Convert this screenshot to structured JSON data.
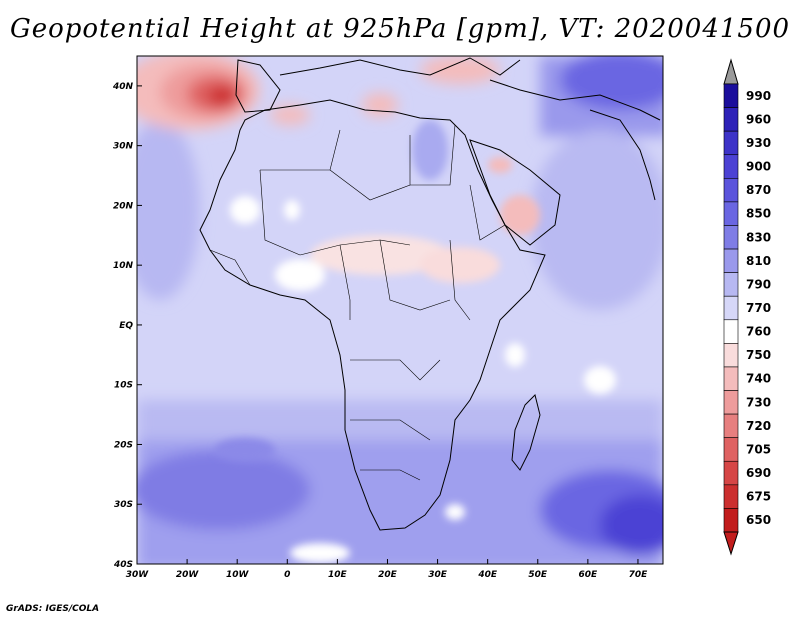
{
  "title": "Geopotential Height at 925hPa [gpm], VT: 2020041500",
  "credit": "GrADS: IGES/COLA",
  "map": {
    "lon_range": [
      -30,
      75
    ],
    "lat_range": [
      -40,
      45
    ],
    "lon_ticks": [
      "30W",
      "20W",
      "10W",
      "0",
      "10E",
      "20E",
      "30E",
      "40E",
      "50E",
      "60E",
      "70E"
    ],
    "lat_ticks": [
      "40S",
      "30S",
      "20S",
      "10S",
      "EQ",
      "10N",
      "20N",
      "30N",
      "40N"
    ]
  },
  "colorbar": {
    "levels": [
      "990",
      "960",
      "930",
      "900",
      "870",
      "850",
      "830",
      "810",
      "790",
      "770",
      "760",
      "750",
      "740",
      "730",
      "720",
      "705",
      "690",
      "675",
      "650"
    ],
    "colors": [
      "#1b0e9c",
      "#2e22b8",
      "#3d33c8",
      "#4c42d4",
      "#5b54dc",
      "#6a66e2",
      "#7f7de6",
      "#9a99ec",
      "#b7b8f2",
      "#d6d7f8",
      "#ffffff",
      "#f9dcdc",
      "#f4bcbc",
      "#ee9c9c",
      "#e77f7f",
      "#df6262",
      "#d64646",
      "#cc2f2f",
      "#c21d1d"
    ]
  }
}
